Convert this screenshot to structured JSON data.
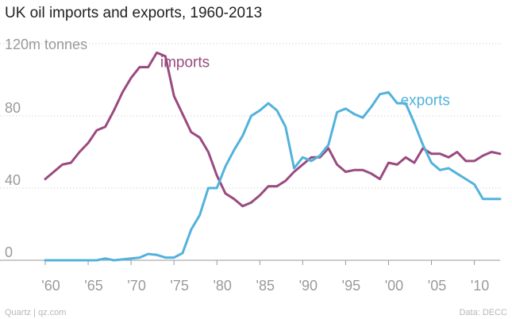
{
  "header": {
    "title": "UK oil imports and exports, 1960-2013"
  },
  "footer": {
    "left": "Quartz | qz.com",
    "right": "Data: DECC"
  },
  "colors": {
    "imports": "#9a4a80",
    "exports": "#52b2dc",
    "grid": "#d6d6d6",
    "axis": "#9a9a9a",
    "tick_text": "#9a9a9a"
  },
  "chart_data": {
    "type": "line",
    "title": "UK oil imports and exports, 1960-2013",
    "xlabel": "",
    "ylabel": "",
    "y_unit_label": "120m tonnes",
    "xlim": [
      1960,
      2013
    ],
    "ylim": [
      0,
      120
    ],
    "grid": true,
    "x_ticks": [
      {
        "value": 1960,
        "label": "'60"
      },
      {
        "value": 1965,
        "label": "'65"
      },
      {
        "value": 1970,
        "label": "'70"
      },
      {
        "value": 1975,
        "label": "'75"
      },
      {
        "value": 1980,
        "label": "'80"
      },
      {
        "value": 1985,
        "label": "'85"
      },
      {
        "value": 1990,
        "label": "'90"
      },
      {
        "value": 1995,
        "label": "'95"
      },
      {
        "value": 2000,
        "label": "'00"
      },
      {
        "value": 2005,
        "label": "'05"
      },
      {
        "value": 2010,
        "label": "'10"
      }
    ],
    "y_ticks": [
      {
        "value": 0,
        "label": "0"
      },
      {
        "value": 40,
        "label": "40"
      },
      {
        "value": 80,
        "label": "80"
      }
    ],
    "x": [
      1960,
      1961,
      1962,
      1963,
      1964,
      1965,
      1966,
      1967,
      1968,
      1969,
      1970,
      1971,
      1972,
      1973,
      1974,
      1975,
      1976,
      1977,
      1978,
      1979,
      1980,
      1981,
      1982,
      1983,
      1984,
      1985,
      1986,
      1987,
      1988,
      1989,
      1990,
      1991,
      1992,
      1993,
      1994,
      1995,
      1996,
      1997,
      1998,
      1999,
      2000,
      2001,
      2002,
      2003,
      2004,
      2005,
      2006,
      2007,
      2008,
      2009,
      2010,
      2011,
      2012,
      2013
    ],
    "series": [
      {
        "name": "imports",
        "values": [
          45,
          49,
          53,
          54,
          60,
          65,
          72,
          74,
          83,
          93,
          101,
          107,
          107,
          115,
          113,
          91,
          81,
          71,
          68,
          60,
          47,
          37,
          34,
          30,
          32,
          36,
          41,
          41,
          44,
          49,
          53,
          57,
          57,
          62,
          53,
          49,
          50,
          50,
          48,
          45,
          54,
          53,
          57,
          54,
          62,
          59,
          59,
          57,
          60,
          55,
          55,
          58,
          60,
          59
        ]
      },
      {
        "name": "exports",
        "values": [
          0,
          0,
          0,
          0,
          0,
          0,
          0,
          1,
          0,
          0.5,
          1,
          1.5,
          3.5,
          3,
          1.5,
          1.5,
          4,
          17,
          25,
          40,
          40,
          52,
          61,
          69,
          80,
          83,
          87,
          83,
          74,
          51,
          57,
          55,
          58,
          64,
          82,
          84,
          81,
          79,
          85,
          92,
          93,
          87,
          87,
          76,
          64,
          54,
          50,
          51,
          48,
          45,
          42,
          34,
          34,
          34
        ]
      }
    ],
    "legend": "inline labels next to lines"
  }
}
